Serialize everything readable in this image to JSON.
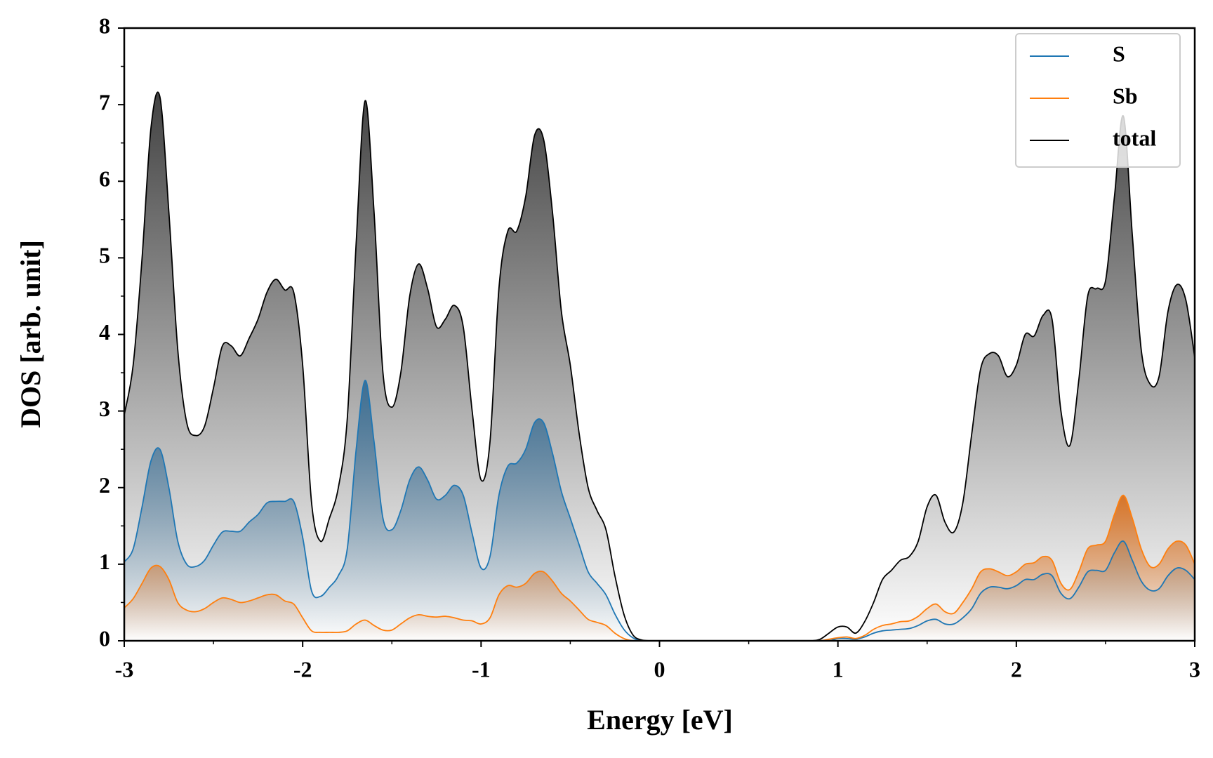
{
  "chart_data": {
    "type": "line",
    "xlabel": "Energy [eV]",
    "ylabel": "DOS [arb. unit]",
    "x": [
      -3,
      -2.95,
      -2.9,
      -2.85,
      -2.8,
      -2.75,
      -2.7,
      -2.65,
      -2.6,
      -2.55,
      -2.5,
      -2.45,
      -2.4,
      -2.35,
      -2.3,
      -2.25,
      -2.2,
      -2.15,
      -2.1,
      -2.05,
      -2,
      -1.95,
      -1.9,
      -1.85,
      -1.8,
      -1.75,
      -1.7,
      -1.65,
      -1.6,
      -1.55,
      -1.5,
      -1.45,
      -1.4,
      -1.35,
      -1.3,
      -1.25,
      -1.2,
      -1.15,
      -1.1,
      -1.05,
      -1,
      -0.95,
      -0.9,
      -0.85,
      -0.8,
      -0.75,
      -0.7,
      -0.65,
      -0.6,
      -0.55,
      -0.5,
      -0.45,
      -0.4,
      -0.35,
      -0.3,
      -0.25,
      -0.2,
      -0.15,
      -0.1,
      -0.05,
      0,
      0.05,
      0.1,
      0.15,
      0.2,
      0.25,
      0.3,
      0.35,
      0.4,
      0.45,
      0.5,
      0.55,
      0.6,
      0.65,
      0.7,
      0.75,
      0.8,
      0.85,
      0.9,
      0.95,
      1,
      1.05,
      1.1,
      1.15,
      1.2,
      1.25,
      1.3,
      1.35,
      1.4,
      1.45,
      1.5,
      1.55,
      1.6,
      1.65,
      1.7,
      1.75,
      1.8,
      1.85,
      1.9,
      1.95,
      2,
      2.05,
      2.1,
      2.15,
      2.2,
      2.25,
      2.3,
      2.35,
      2.4,
      2.45,
      2.5,
      2.55,
      2.6,
      2.65,
      2.7,
      2.75,
      2.8,
      2.85,
      2.9,
      2.95,
      3
    ],
    "series": [
      {
        "name": "S",
        "color": "#1f77b4",
        "fill": "#2b6590",
        "values": [
          1.03,
          1.2,
          1.75,
          2.35,
          2.5,
          2.0,
          1.3,
          1.0,
          0.97,
          1.05,
          1.25,
          1.42,
          1.43,
          1.43,
          1.55,
          1.65,
          1.8,
          1.82,
          1.82,
          1.82,
          1.35,
          0.65,
          0.58,
          0.7,
          0.85,
          1.2,
          2.5,
          3.4,
          2.6,
          1.6,
          1.45,
          1.7,
          2.1,
          2.27,
          2.1,
          1.85,
          1.9,
          2.03,
          1.9,
          1.4,
          0.95,
          1.1,
          1.9,
          2.28,
          2.32,
          2.5,
          2.85,
          2.85,
          2.45,
          1.95,
          1.6,
          1.25,
          0.9,
          0.75,
          0.6,
          0.35,
          0.15,
          0.04,
          0,
          0,
          0,
          0,
          0,
          0,
          0,
          0,
          0,
          0,
          0,
          0,
          0,
          0,
          0,
          0,
          0,
          0,
          0,
          0,
          0,
          0,
          0.03,
          0.03,
          0.02,
          0.05,
          0.1,
          0.13,
          0.14,
          0.15,
          0.16,
          0.2,
          0.26,
          0.28,
          0.22,
          0.22,
          0.3,
          0.42,
          0.62,
          0.7,
          0.7,
          0.68,
          0.72,
          0.8,
          0.8,
          0.87,
          0.85,
          0.62,
          0.55,
          0.7,
          0.9,
          0.92,
          0.92,
          1.15,
          1.3,
          1.05,
          0.78,
          0.66,
          0.68,
          0.85,
          0.95,
          0.92,
          0.8
        ]
      },
      {
        "name": "Sb",
        "color": "#ff7f0e",
        "fill": "#d9650b",
        "values": [
          0.43,
          0.55,
          0.75,
          0.95,
          0.97,
          0.8,
          0.5,
          0.4,
          0.38,
          0.42,
          0.5,
          0.56,
          0.54,
          0.5,
          0.52,
          0.56,
          0.6,
          0.6,
          0.52,
          0.48,
          0.3,
          0.13,
          0.11,
          0.11,
          0.11,
          0.13,
          0.22,
          0.27,
          0.2,
          0.14,
          0.14,
          0.22,
          0.3,
          0.34,
          0.32,
          0.31,
          0.32,
          0.3,
          0.27,
          0.26,
          0.22,
          0.3,
          0.6,
          0.72,
          0.7,
          0.75,
          0.88,
          0.9,
          0.78,
          0.62,
          0.52,
          0.4,
          0.28,
          0.24,
          0.2,
          0.1,
          0.03,
          0,
          0,
          0,
          0,
          0,
          0,
          0,
          0,
          0,
          0,
          0,
          0,
          0,
          0,
          0,
          0,
          0,
          0,
          0,
          0,
          0,
          0,
          0.02,
          0.04,
          0.05,
          0.03,
          0.07,
          0.15,
          0.2,
          0.22,
          0.25,
          0.26,
          0.32,
          0.42,
          0.48,
          0.38,
          0.36,
          0.5,
          0.68,
          0.9,
          0.94,
          0.9,
          0.85,
          0.9,
          1.0,
          1.02,
          1.1,
          1.05,
          0.75,
          0.67,
          0.9,
          1.2,
          1.25,
          1.3,
          1.65,
          1.9,
          1.6,
          1.2,
          0.97,
          1.0,
          1.2,
          1.3,
          1.25,
          1.0
        ]
      },
      {
        "name": "total",
        "color": "#000000",
        "fill": "#3a3a3a",
        "values": [
          2.95,
          3.6,
          5.0,
          6.7,
          7.1,
          5.6,
          3.8,
          2.85,
          2.68,
          2.8,
          3.3,
          3.85,
          3.85,
          3.72,
          3.95,
          4.2,
          4.55,
          4.72,
          4.58,
          4.55,
          3.6,
          1.8,
          1.3,
          1.6,
          2.0,
          2.9,
          5.2,
          7.05,
          5.6,
          3.5,
          3.05,
          3.5,
          4.5,
          4.92,
          4.6,
          4.1,
          4.2,
          4.38,
          4.1,
          3.0,
          2.1,
          2.6,
          4.6,
          5.35,
          5.35,
          5.8,
          6.6,
          6.55,
          5.6,
          4.3,
          3.6,
          2.7,
          2.0,
          1.7,
          1.45,
          0.85,
          0.35,
          0.08,
          0.01,
          0,
          0,
          0,
          0,
          0,
          0,
          0,
          0,
          0,
          0,
          0,
          0,
          0,
          0,
          0,
          0,
          0,
          0,
          0,
          0.02,
          0.1,
          0.18,
          0.18,
          0.1,
          0.25,
          0.5,
          0.8,
          0.92,
          1.05,
          1.1,
          1.3,
          1.75,
          1.9,
          1.55,
          1.42,
          1.8,
          2.7,
          3.55,
          3.75,
          3.72,
          3.45,
          3.6,
          4.0,
          3.98,
          4.25,
          4.2,
          3.0,
          2.55,
          3.4,
          4.5,
          4.6,
          4.7,
          5.8,
          6.85,
          5.3,
          3.8,
          3.35,
          3.45,
          4.3,
          4.65,
          4.45,
          3.7
        ]
      }
    ],
    "fill_order": [
      2,
      0,
      1
    ],
    "xlim": [
      -3,
      3
    ],
    "ylim": [
      0,
      8
    ],
    "xticks": [
      -3,
      -2,
      -1,
      0,
      1,
      2,
      3
    ],
    "yticks": [
      0,
      1,
      2,
      3,
      4,
      5,
      6,
      7,
      8
    ],
    "xminorticks": [
      -2.5,
      -1.5,
      -0.5,
      0.5,
      1.5,
      2.5
    ],
    "yminorticks": [
      0.5,
      1.5,
      2.5,
      3.5,
      4.5,
      5.5,
      6.5,
      7.5
    ],
    "legend": "upper right",
    "grid": false
  }
}
